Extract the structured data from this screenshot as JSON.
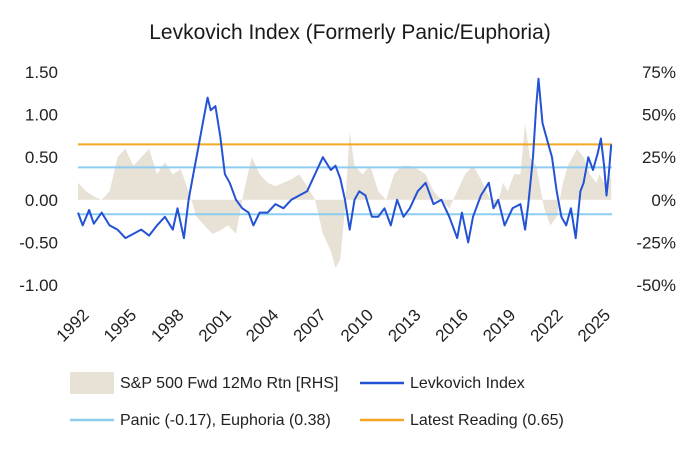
{
  "chart_data": {
    "type": "line",
    "title": "Levkovich Index (Formerly Panic/Euphoria)",
    "x": {
      "range": [
        1992,
        2025.8
      ],
      "tick_labels": [
        "1992",
        "1995",
        "1998",
        "2001",
        "2004",
        "2007",
        "2010",
        "2013",
        "2016",
        "2019",
        "2022",
        "2025"
      ],
      "tick_values": [
        1992,
        1995,
        1998,
        2001,
        2004,
        2007,
        2010,
        2013,
        2016,
        2019,
        2022,
        2025
      ]
    },
    "y_left": {
      "range": [
        -1.0,
        1.5
      ],
      "tick_labels": [
        "1.50",
        "1.00",
        "0.50",
        "0.00",
        "-0.50",
        "-1.00"
      ],
      "tick_values": [
        1.5,
        1.0,
        0.5,
        0.0,
        -0.5,
        -1.0
      ]
    },
    "y_right": {
      "range": [
        -50,
        75
      ],
      "unit": "%",
      "tick_labels": [
        "75%",
        "50%",
        "25%",
        "0%",
        "-25%",
        "-50%"
      ],
      "tick_values": [
        75,
        50,
        25,
        0,
        -25,
        -50
      ]
    },
    "reference_lines": [
      {
        "name": "Panic",
        "value": -0.17,
        "color": "#8ecdf0"
      },
      {
        "name": "Euphoria",
        "value": 0.38,
        "color": "#8ecdf0"
      },
      {
        "name": "Latest Reading",
        "value": 0.65,
        "color": "#f5a623"
      }
    ],
    "series": [
      {
        "name": "Levkovich Index",
        "axis": "left",
        "color": "#2452d4",
        "points": [
          [
            1992.0,
            -0.15
          ],
          [
            1992.3,
            -0.3
          ],
          [
            1992.7,
            -0.12
          ],
          [
            1993.0,
            -0.28
          ],
          [
            1993.5,
            -0.15
          ],
          [
            1994.0,
            -0.3
          ],
          [
            1994.5,
            -0.35
          ],
          [
            1995.0,
            -0.45
          ],
          [
            1995.5,
            -0.4
          ],
          [
            1996.0,
            -0.35
          ],
          [
            1996.5,
            -0.42
          ],
          [
            1997.0,
            -0.3
          ],
          [
            1997.5,
            -0.2
          ],
          [
            1998.0,
            -0.35
          ],
          [
            1998.3,
            -0.1
          ],
          [
            1998.7,
            -0.45
          ],
          [
            1999.0,
            0.0
          ],
          [
            1999.3,
            0.3
          ],
          [
            1999.6,
            0.6
          ],
          [
            1999.9,
            0.9
          ],
          [
            2000.2,
            1.2
          ],
          [
            2000.4,
            1.05
          ],
          [
            2000.7,
            1.1
          ],
          [
            2001.0,
            0.75
          ],
          [
            2001.3,
            0.3
          ],
          [
            2001.6,
            0.2
          ],
          [
            2002.0,
            0.0
          ],
          [
            2002.4,
            -0.1
          ],
          [
            2002.8,
            -0.15
          ],
          [
            2003.1,
            -0.3
          ],
          [
            2003.5,
            -0.15
          ],
          [
            2004.0,
            -0.15
          ],
          [
            2004.5,
            -0.05
          ],
          [
            2005.0,
            -0.1
          ],
          [
            2005.5,
            0.0
          ],
          [
            2006.0,
            0.05
          ],
          [
            2006.5,
            0.1
          ],
          [
            2007.0,
            0.3
          ],
          [
            2007.5,
            0.5
          ],
          [
            2008.0,
            0.35
          ],
          [
            2008.3,
            0.4
          ],
          [
            2008.6,
            0.25
          ],
          [
            2008.9,
            0.0
          ],
          [
            2009.2,
            -0.35
          ],
          [
            2009.5,
            0.0
          ],
          [
            2009.8,
            0.1
          ],
          [
            2010.2,
            0.05
          ],
          [
            2010.6,
            -0.2
          ],
          [
            2011.0,
            -0.2
          ],
          [
            2011.4,
            -0.1
          ],
          [
            2011.8,
            -0.3
          ],
          [
            2012.2,
            0.0
          ],
          [
            2012.6,
            -0.2
          ],
          [
            2013.0,
            -0.1
          ],
          [
            2013.5,
            0.1
          ],
          [
            2014.0,
            0.2
          ],
          [
            2014.5,
            -0.05
          ],
          [
            2015.0,
            0.0
          ],
          [
            2015.5,
            -0.2
          ],
          [
            2016.0,
            -0.45
          ],
          [
            2016.3,
            -0.15
          ],
          [
            2016.7,
            -0.5
          ],
          [
            2017.0,
            -0.2
          ],
          [
            2017.5,
            0.05
          ],
          [
            2018.0,
            0.2
          ],
          [
            2018.3,
            -0.1
          ],
          [
            2018.6,
            0.0
          ],
          [
            2019.0,
            -0.3
          ],
          [
            2019.5,
            -0.1
          ],
          [
            2020.0,
            -0.05
          ],
          [
            2020.3,
            -0.35
          ],
          [
            2020.5,
            -0.05
          ],
          [
            2020.8,
            0.5
          ],
          [
            2021.0,
            1.1
          ],
          [
            2021.15,
            1.42
          ],
          [
            2021.4,
            0.9
          ],
          [
            2021.7,
            0.7
          ],
          [
            2022.0,
            0.5
          ],
          [
            2022.3,
            0.1
          ],
          [
            2022.6,
            -0.2
          ],
          [
            2022.9,
            -0.3
          ],
          [
            2023.2,
            -0.1
          ],
          [
            2023.5,
            -0.45
          ],
          [
            2023.8,
            0.1
          ],
          [
            2024.0,
            0.2
          ],
          [
            2024.3,
            0.5
          ],
          [
            2024.6,
            0.35
          ],
          [
            2024.9,
            0.55
          ],
          [
            2025.1,
            0.72
          ],
          [
            2025.3,
            0.4
          ],
          [
            2025.45,
            0.05
          ],
          [
            2025.6,
            0.3
          ],
          [
            2025.75,
            0.65
          ]
        ]
      },
      {
        "name": "S&P 500 Fwd 12Mo Rtn [RHS]",
        "axis": "right",
        "type": "area",
        "color": "#e8e1d6",
        "points": [
          [
            1992.0,
            10
          ],
          [
            1992.5,
            5
          ],
          [
            1993.0,
            2
          ],
          [
            1993.5,
            0
          ],
          [
            1994.0,
            5
          ],
          [
            1994.5,
            25
          ],
          [
            1995.0,
            30
          ],
          [
            1995.5,
            20
          ],
          [
            1996.0,
            25
          ],
          [
            1996.5,
            30
          ],
          [
            1997.0,
            15
          ],
          [
            1997.5,
            22
          ],
          [
            1998.0,
            15
          ],
          [
            1998.5,
            18
          ],
          [
            1999.0,
            5
          ],
          [
            1999.5,
            -10
          ],
          [
            2000.0,
            -15
          ],
          [
            2000.5,
            -20
          ],
          [
            2001.0,
            -18
          ],
          [
            2001.5,
            -15
          ],
          [
            2002.0,
            -20
          ],
          [
            2002.5,
            5
          ],
          [
            2003.0,
            25
          ],
          [
            2003.5,
            15
          ],
          [
            2004.0,
            10
          ],
          [
            2004.5,
            8
          ],
          [
            2005.0,
            10
          ],
          [
            2005.5,
            12
          ],
          [
            2006.0,
            15
          ],
          [
            2006.5,
            8
          ],
          [
            2007.0,
            0
          ],
          [
            2007.5,
            -20
          ],
          [
            2008.0,
            -30
          ],
          [
            2008.3,
            -40
          ],
          [
            2008.6,
            -35
          ],
          [
            2008.9,
            -5
          ],
          [
            2009.2,
            40
          ],
          [
            2009.5,
            20
          ],
          [
            2010.0,
            15
          ],
          [
            2010.5,
            20
          ],
          [
            2011.0,
            5
          ],
          [
            2011.5,
            0
          ],
          [
            2012.0,
            15
          ],
          [
            2012.5,
            20
          ],
          [
            2013.0,
            20
          ],
          [
            2013.5,
            18
          ],
          [
            2014.0,
            15
          ],
          [
            2014.5,
            5
          ],
          [
            2015.0,
            0
          ],
          [
            2015.5,
            -5
          ],
          [
            2016.0,
            5
          ],
          [
            2016.5,
            15
          ],
          [
            2017.0,
            20
          ],
          [
            2017.5,
            12
          ],
          [
            2018.0,
            2
          ],
          [
            2018.5,
            -5
          ],
          [
            2018.9,
            10
          ],
          [
            2019.2,
            5
          ],
          [
            2019.6,
            15
          ],
          [
            2020.0,
            15
          ],
          [
            2020.3,
            45
          ],
          [
            2020.6,
            25
          ],
          [
            2021.0,
            20
          ],
          [
            2021.5,
            -5
          ],
          [
            2021.9,
            -15
          ],
          [
            2022.3,
            -10
          ],
          [
            2022.7,
            10
          ],
          [
            2023.0,
            20
          ],
          [
            2023.3,
            25
          ],
          [
            2023.6,
            30
          ],
          [
            2024.0,
            25
          ],
          [
            2024.4,
            15
          ],
          [
            2024.8,
            10
          ],
          [
            2025.0,
            15
          ],
          [
            2025.3,
            10
          ],
          [
            2025.6,
            12
          ],
          [
            2025.75,
            14
          ]
        ]
      }
    ],
    "legend": {
      "position": "bottom",
      "items": [
        {
          "label": "S&P 500 Fwd 12Mo Rtn [RHS]",
          "kind": "area",
          "color": "#e8e1d6"
        },
        {
          "label": "Levkovich Index",
          "kind": "line",
          "color": "#2452d4"
        },
        {
          "label": "Panic (-0.17), Euphoria (0.38)",
          "kind": "line",
          "color": "#8ecdf0"
        },
        {
          "label": "Latest Reading (0.65)",
          "kind": "line",
          "color": "#f5a623"
        }
      ]
    }
  }
}
